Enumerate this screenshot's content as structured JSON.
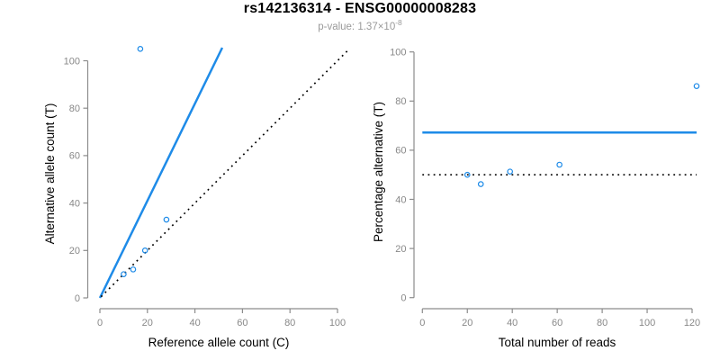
{
  "header": {
    "title": "rs142136314 - ENSG00000008283",
    "subtitle_main": "p-value: 1.37×10",
    "subtitle_exponent": "-8"
  },
  "colors": {
    "accent_blue": "#1E8BE8",
    "line_black": "#000000",
    "axis_gray": "#8C8C8C",
    "tick_label_gray": "#888888",
    "axis_title_black": "#000000",
    "subtitle_gray": "#9A9A9A",
    "background": "#FFFFFF"
  },
  "chart_data": [
    {
      "type": "scatter",
      "panel": "allele-counts",
      "xlabel": "Reference allele count (C)",
      "ylabel": "Alternative allele count (T)",
      "xlim": [
        0,
        105
      ],
      "ylim": [
        0,
        106
      ],
      "xticks": [
        0,
        20,
        40,
        60,
        80,
        100
      ],
      "yticks": [
        0,
        20,
        40,
        60,
        80,
        100
      ],
      "grid": false,
      "points": [
        [
          10,
          10
        ],
        [
          14,
          12
        ],
        [
          19,
          20
        ],
        [
          28,
          33
        ],
        [
          17,
          105
        ]
      ],
      "lines": [
        {
          "name": "allelic-ratio-line",
          "style": "solid",
          "color": "blue",
          "x1": 0,
          "y1": 0,
          "x2": 51.5,
          "y2": 105.5
        },
        {
          "name": "identity-line",
          "style": "dotted",
          "color": "black",
          "x1": 0.5,
          "y1": 0.5,
          "x2": 104.3,
          "y2": 104.3
        }
      ]
    },
    {
      "type": "scatter",
      "panel": "percentage-vs-coverage",
      "xlabel": "Total number of reads",
      "ylabel": "Percentage alternative (T)",
      "xlim": [
        0,
        122
      ],
      "ylim": [
        0,
        100
      ],
      "xticks": [
        0,
        20,
        40,
        60,
        80,
        100,
        120
      ],
      "yticks": [
        0,
        20,
        40,
        60,
        80,
        100
      ],
      "grid": false,
      "points": [
        [
          20,
          50
        ],
        [
          26,
          46.2
        ],
        [
          39,
          51.3
        ],
        [
          61,
          54.1
        ],
        [
          122,
          86.1
        ]
      ],
      "lines": [
        {
          "name": "overall-percentage-line",
          "style": "solid",
          "color": "blue",
          "x1": 0,
          "y1": 67.2,
          "x2": 122,
          "y2": 67.2
        },
        {
          "name": "fifty-percent-line",
          "style": "dotted",
          "color": "black",
          "x1": 0,
          "y1": 50,
          "x2": 122,
          "y2": 50
        }
      ]
    }
  ]
}
